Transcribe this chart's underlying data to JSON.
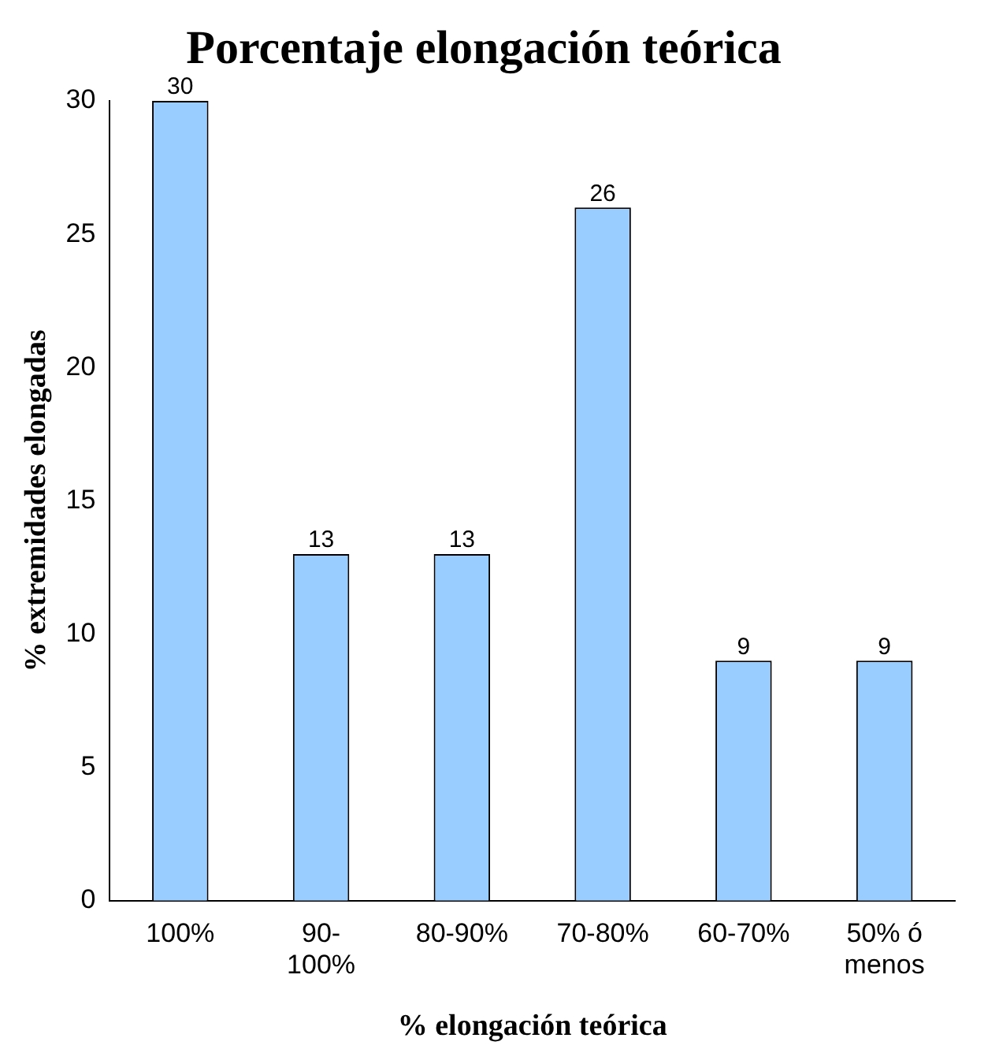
{
  "chart_data": {
    "type": "bar",
    "title": "Porcentaje elongación teórica",
    "xlabel": "% elongación teórica",
    "ylabel": "% extremidades elongadas",
    "categories": [
      "100%",
      "90-100%",
      "80-90%",
      "70-80%",
      "60-70%",
      "50% ó menos"
    ],
    "values": [
      30,
      13,
      13,
      26,
      9,
      9
    ],
    "color": "#99ccff",
    "ylim": [
      0,
      30
    ],
    "yticks": [
      0,
      5,
      10,
      15,
      20,
      25,
      30
    ],
    "grid": false,
    "data_labels": true,
    "legend": false
  }
}
